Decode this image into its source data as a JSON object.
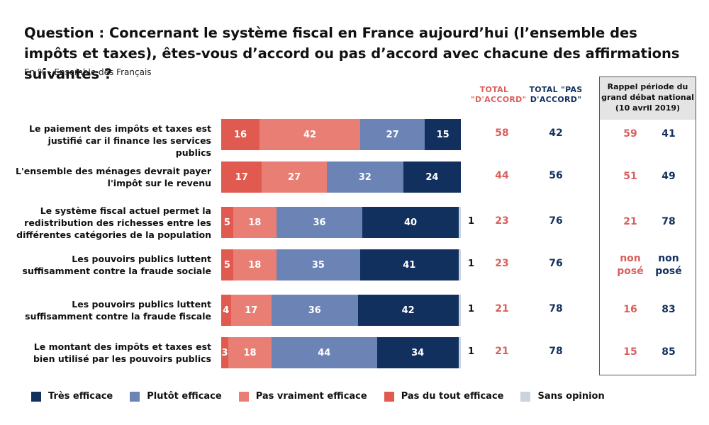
{
  "title": "Question : Concernant le système fiscal en France aujourd’hui (l’ensemble des impôts et taxes), êtes-vous d’accord ou pas d’accord avec chacune des affirmations suivantes ?",
  "subtitle": "En % - Ensemble des Français",
  "headers": {
    "total_accord": "TOTAL \"D'ACCORD\"",
    "total_pas_accord": "TOTAL \"PAS D'ACCORD\"",
    "recall": "Rappel période du grand débat national (10 avril 2019)"
  },
  "colors": {
    "tres_efficace": "#12305e",
    "plutot_efficace": "#6b83b5",
    "pas_vraiment_efficace": "#e97f74",
    "pas_du_tout_efficace": "#e05a4f",
    "sans_opinion": "#c9d4df",
    "accord_text": "#d9605c",
    "pas_accord_text": "#12305e"
  },
  "chart_data": {
    "type": "bar",
    "orientation": "horizontal-stacked",
    "categories": [
      "Le paiement des impôts et taxes est justifié car il finance les services publics",
      "L'ensemble des ménages devrait payer l'impôt sur le revenu",
      "Le système fiscal actuel permet la redistribution des richesses entre les différentes catégories de la population",
      "Les pouvoirs publics luttent suffisamment contre la fraude sociale",
      "Les pouvoirs publics luttent suffisamment contre la fraude fiscale",
      "Le montant des impôts et taxes est bien utilisé par les pouvoirs publics"
    ],
    "series": [
      {
        "name": "Pas du tout efficace",
        "color": "#e05a4f",
        "values": [
          16,
          17,
          5,
          5,
          4,
          3
        ]
      },
      {
        "name": "Pas vraiment efficace",
        "color": "#e97f74",
        "values": [
          42,
          27,
          18,
          18,
          17,
          18
        ]
      },
      {
        "name": "Plutôt efficace",
        "color": "#6b83b5",
        "values": [
          27,
          32,
          36,
          35,
          36,
          44
        ]
      },
      {
        "name": "Très efficace",
        "color": "#12305e",
        "values": [
          15,
          24,
          40,
          41,
          42,
          34
        ]
      },
      {
        "name": "Sans opinion",
        "color": "#c9d4df",
        "values": [
          0,
          0,
          1,
          1,
          1,
          1
        ]
      }
    ],
    "sans_opinion_labels": [
      "",
      "",
      "1",
      "1",
      "1",
      "1"
    ],
    "total_accord": [
      58,
      44,
      23,
      23,
      21,
      21
    ],
    "total_pas_accord": [
      42,
      56,
      76,
      76,
      78,
      78
    ],
    "recall_accord": [
      "59",
      "51",
      "21",
      "non posé",
      "16",
      "15"
    ],
    "recall_pas_accord": [
      "41",
      "49",
      "78",
      "non posé",
      "83",
      "85"
    ],
    "legend": [
      "Très efficace",
      "Plutôt efficace",
      "Pas vraiment efficace",
      "Pas du tout efficace",
      "Sans opinion"
    ],
    "legend_colors": [
      "#12305e",
      "#6b83b5",
      "#e97f74",
      "#e05a4f",
      "#c9d4df"
    ],
    "xlim": [
      0,
      100
    ],
    "legend_position": "bottom"
  }
}
